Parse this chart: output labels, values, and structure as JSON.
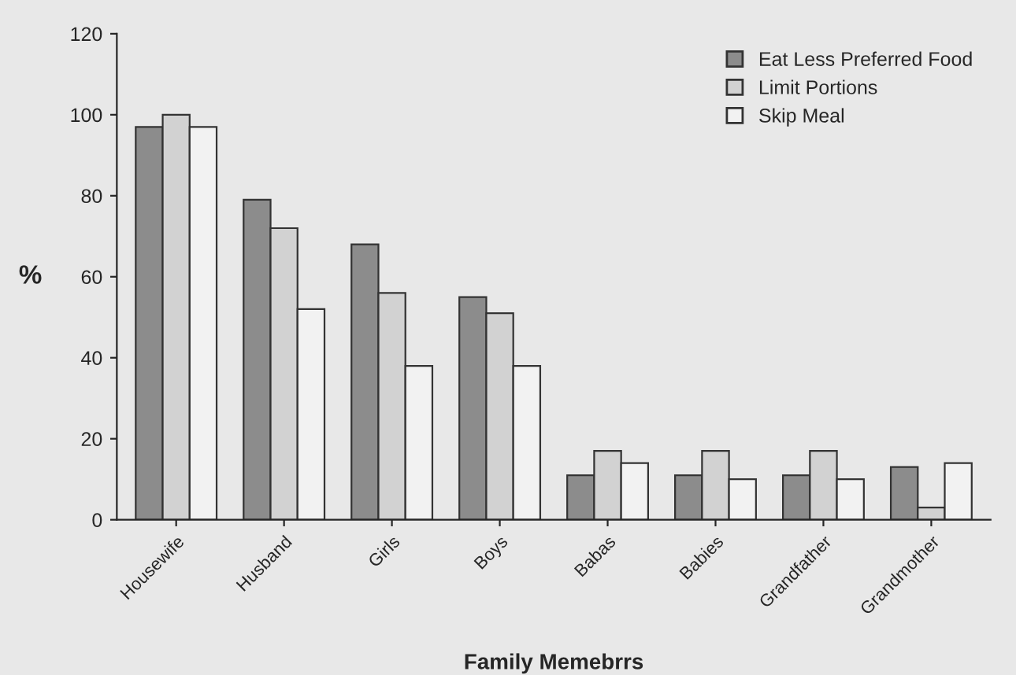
{
  "chart_data": {
    "type": "bar",
    "xlabel": "Family Memebrrs",
    "ylabel": "%",
    "categories": [
      "Housewife",
      "Husband",
      "Girls",
      "Boys",
      "Babas",
      "Babies",
      "Grandfather",
      "Grandmother"
    ],
    "series": [
      {
        "name": "Eat Less Preferred Food",
        "color": "#8c8c8c",
        "values": [
          97,
          79,
          68,
          55,
          11,
          11,
          11,
          13
        ]
      },
      {
        "name": "Limit Portions",
        "color": "#d2d2d2",
        "values": [
          100,
          72,
          56,
          51,
          17,
          17,
          17,
          3
        ]
      },
      {
        "name": "Skip Meal",
        "color": "#f2f2f2",
        "values": [
          97,
          52,
          38,
          38,
          14,
          10,
          10,
          14
        ]
      }
    ],
    "ylim": [
      0,
      120
    ],
    "yticks": [
      0,
      20,
      40,
      60,
      80,
      100,
      120
    ],
    "grid": false,
    "legend": "top right"
  }
}
